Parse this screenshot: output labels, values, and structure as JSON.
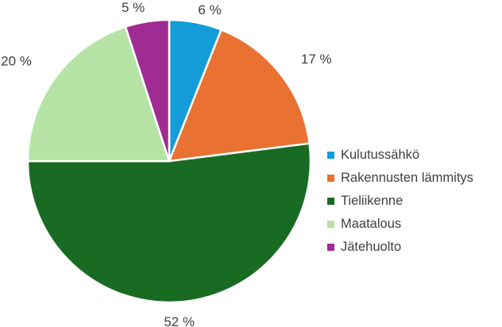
{
  "chart_data": {
    "type": "pie",
    "categories": [
      "Kulutussähkö",
      "Rakennusten lämmitys",
      "Tieliikenne",
      "Maatalous",
      "Jätehuolto"
    ],
    "values": [
      6,
      17,
      52,
      20,
      5
    ],
    "data_labels": [
      "6 %",
      "17 %",
      "52 %",
      "20 %",
      "5 %"
    ],
    "colors": [
      "#139cd8",
      "#e97132",
      "#196b24",
      "#b5e3a5",
      "#a02b93"
    ],
    "start_angle_deg": 0,
    "direction": "clockwise",
    "legend_position": "right",
    "title": ""
  }
}
